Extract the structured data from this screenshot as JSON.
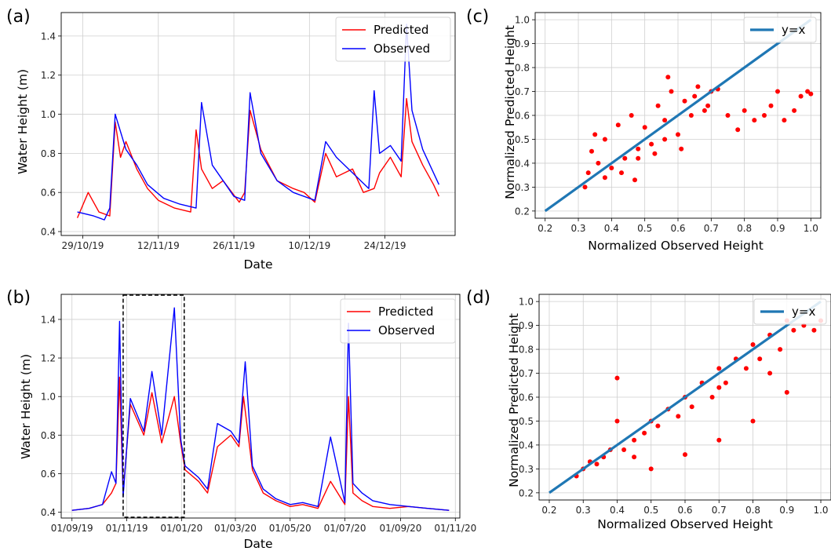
{
  "chart_data": [
    {
      "panel": "(a)",
      "type": "line",
      "xlabel": "Date",
      "ylabel": "Water Height (m)",
      "xticks": [
        "29/10/19",
        "12/11/19",
        "26/11/19",
        "10/12/19",
        "24/12/19"
      ],
      "yticks": [
        "0.4",
        "0.6",
        "0.8",
        "1.0",
        "1.2",
        "1.4"
      ],
      "ylim": [
        0.38,
        1.52
      ],
      "xlim": [
        "2019-10-25",
        "2020-01-06"
      ],
      "grid": true,
      "legend_position": "top-right",
      "series": [
        {
          "name": "Predicted",
          "color": "#ff0000",
          "x": [
            "2019-10-28",
            "2019-10-30",
            "2019-11-01",
            "2019-11-03",
            "2019-11-04",
            "2019-11-05",
            "2019-11-06",
            "2019-11-08",
            "2019-11-10",
            "2019-11-12",
            "2019-11-15",
            "2019-11-18",
            "2019-11-19",
            "2019-11-20",
            "2019-11-22",
            "2019-11-24",
            "2019-11-27",
            "2019-11-28",
            "2019-11-29",
            "2019-12-01",
            "2019-12-04",
            "2019-12-07",
            "2019-12-09",
            "2019-12-11",
            "2019-12-13",
            "2019-12-15",
            "2019-12-18",
            "2019-12-20",
            "2019-12-22",
            "2019-12-23",
            "2019-12-25",
            "2019-12-27",
            "2019-12-28",
            "2019-12-29",
            "2019-12-31",
            "2020-01-02",
            "2020-01-03"
          ],
          "y": [
            0.47,
            0.6,
            0.5,
            0.48,
            0.96,
            0.78,
            0.86,
            0.72,
            0.62,
            0.56,
            0.52,
            0.5,
            0.92,
            0.72,
            0.62,
            0.66,
            0.55,
            0.6,
            1.02,
            0.82,
            0.66,
            0.62,
            0.6,
            0.55,
            0.8,
            0.68,
            0.72,
            0.6,
            0.62,
            0.7,
            0.78,
            0.68,
            1.08,
            0.86,
            0.74,
            0.64,
            0.58
          ]
        },
        {
          "name": "Observed",
          "color": "#0000ff",
          "x": [
            "2019-10-28",
            "2019-10-31",
            "2019-11-02",
            "2019-11-03",
            "2019-11-04",
            "2019-11-06",
            "2019-11-08",
            "2019-11-10",
            "2019-11-13",
            "2019-11-16",
            "2019-11-19",
            "2019-11-20",
            "2019-11-22",
            "2019-11-24",
            "2019-11-26",
            "2019-11-28",
            "2019-11-29",
            "2019-12-01",
            "2019-12-04",
            "2019-12-07",
            "2019-12-09",
            "2019-12-11",
            "2019-12-13",
            "2019-12-15",
            "2019-12-18",
            "2019-12-21",
            "2019-12-22",
            "2019-12-23",
            "2019-12-25",
            "2019-12-27",
            "2019-12-28",
            "2019-12-29",
            "2019-12-31",
            "2020-01-02",
            "2020-01-03"
          ],
          "y": [
            0.5,
            0.48,
            0.46,
            0.52,
            1.0,
            0.82,
            0.74,
            0.64,
            0.57,
            0.54,
            0.52,
            1.06,
            0.74,
            0.66,
            0.58,
            0.56,
            1.11,
            0.8,
            0.66,
            0.6,
            0.58,
            0.56,
            0.86,
            0.78,
            0.7,
            0.62,
            1.12,
            0.8,
            0.84,
            0.76,
            1.46,
            1.02,
            0.82,
            0.7,
            0.64
          ]
        }
      ]
    },
    {
      "panel": "(b)",
      "type": "line",
      "xlabel": "Date",
      "ylabel": "Water Height (m)",
      "xticks": [
        "01/09/19",
        "01/11/19",
        "01/01/20",
        "01/03/20",
        "01/05/20",
        "01/07/20",
        "01/09/20",
        "01/11/20"
      ],
      "yticks": [
        "0.4",
        "0.6",
        "0.8",
        "1.0",
        "1.2",
        "1.4"
      ],
      "ylim": [
        0.37,
        1.53
      ],
      "xlim": [
        "2019-08-20",
        "2020-11-06"
      ],
      "grid": true,
      "legend_position": "top-right",
      "highlight_box": [
        "2019-10-28",
        "2020-01-04"
      ],
      "series": [
        {
          "name": "Predicted",
          "color": "#ff0000",
          "x": [
            "2019-09-01",
            "2019-09-20",
            "2019-10-05",
            "2019-10-15",
            "2019-10-20",
            "2019-10-24",
            "2019-10-28",
            "2019-11-05",
            "2019-11-20",
            "2019-11-29",
            "2019-12-10",
            "2019-12-24",
            "2019-12-31",
            "2020-01-05",
            "2020-01-20",
            "2020-01-30",
            "2020-02-10",
            "2020-02-25",
            "2020-03-05",
            "2020-03-10",
            "2020-03-20",
            "2020-04-01",
            "2020-04-15",
            "2020-05-01",
            "2020-05-15",
            "2020-06-01",
            "2020-06-15",
            "2020-07-01",
            "2020-07-05",
            "2020-07-10",
            "2020-07-20",
            "2020-08-01",
            "2020-08-20",
            "2020-09-10",
            "2020-10-01",
            "2020-10-25"
          ],
          "y": [
            0.41,
            0.42,
            0.44,
            0.5,
            0.55,
            1.1,
            0.5,
            0.96,
            0.8,
            1.02,
            0.76,
            1.0,
            0.76,
            0.62,
            0.56,
            0.5,
            0.74,
            0.8,
            0.74,
            1.0,
            0.62,
            0.5,
            0.46,
            0.43,
            0.44,
            0.42,
            0.56,
            0.44,
            1.0,
            0.5,
            0.46,
            0.43,
            0.42,
            0.43,
            0.42,
            0.41
          ]
        },
        {
          "name": "Observed",
          "color": "#0000ff",
          "x": [
            "2019-09-01",
            "2019-09-20",
            "2019-10-05",
            "2019-10-15",
            "2019-10-20",
            "2019-10-24",
            "2019-10-28",
            "2019-11-05",
            "2019-11-20",
            "2019-11-29",
            "2019-12-10",
            "2019-12-24",
            "2019-12-31",
            "2020-01-05",
            "2020-01-20",
            "2020-01-30",
            "2020-02-10",
            "2020-02-25",
            "2020-03-05",
            "2020-03-12",
            "2020-03-20",
            "2020-04-01",
            "2020-04-15",
            "2020-05-01",
            "2020-05-15",
            "2020-06-01",
            "2020-06-15",
            "2020-07-01",
            "2020-07-05",
            "2020-07-10",
            "2020-07-20",
            "2020-08-01",
            "2020-08-20",
            "2020-09-10",
            "2020-10-01",
            "2020-10-25"
          ],
          "y": [
            0.41,
            0.42,
            0.44,
            0.61,
            0.55,
            1.39,
            0.48,
            0.99,
            0.82,
            1.13,
            0.8,
            1.46,
            0.78,
            0.64,
            0.58,
            0.52,
            0.86,
            0.82,
            0.76,
            1.18,
            0.64,
            0.52,
            0.47,
            0.44,
            0.45,
            0.43,
            0.79,
            0.45,
            1.38,
            0.55,
            0.5,
            0.46,
            0.44,
            0.43,
            0.42,
            0.41
          ]
        }
      ]
    },
    {
      "panel": "(c)",
      "type": "scatter",
      "xlabel": "Normalized Observed Height",
      "ylabel": "Normalized Predicted Height",
      "xticks": [
        "0.2",
        "0.3",
        "0.4",
        "0.5",
        "0.6",
        "0.7",
        "0.8",
        "0.9",
        "1.0"
      ],
      "yticks": [
        "0.2",
        "0.3",
        "0.4",
        "0.5",
        "0.6",
        "0.7",
        "0.8",
        "0.9",
        "1.0"
      ],
      "xlim": [
        0.17,
        1.03
      ],
      "ylim": [
        0.17,
        1.03
      ],
      "grid": true,
      "legend_position": "top-right",
      "series": [
        {
          "name": "y=x",
          "type": "line",
          "color": "#1f77b4",
          "x": [
            0.2,
            1.0
          ],
          "y": [
            0.2,
            1.0
          ]
        },
        {
          "type": "scatter",
          "color": "#ff0000",
          "x": [
            0.32,
            0.33,
            0.34,
            0.35,
            0.36,
            0.38,
            0.4,
            0.42,
            0.44,
            0.46,
            0.48,
            0.5,
            0.52,
            0.54,
            0.56,
            0.58,
            0.6,
            0.62,
            0.64,
            0.66,
            0.68,
            0.7,
            0.72,
            0.75,
            0.78,
            0.8,
            0.83,
            0.86,
            0.88,
            0.9,
            0.92,
            0.95,
            0.97,
            0.99,
            1.0,
            0.38,
            0.43,
            0.48,
            0.53,
            0.57,
            0.61,
            0.65,
            0.69,
            0.56,
            0.47
          ],
          "y": [
            0.3,
            0.36,
            0.45,
            0.52,
            0.4,
            0.5,
            0.38,
            0.56,
            0.42,
            0.6,
            0.46,
            0.55,
            0.48,
            0.64,
            0.58,
            0.7,
            0.52,
            0.66,
            0.6,
            0.72,
            0.62,
            0.7,
            0.71,
            0.6,
            0.54,
            0.62,
            0.58,
            0.6,
            0.64,
            0.7,
            0.58,
            0.62,
            0.68,
            0.7,
            0.69,
            0.34,
            0.36,
            0.42,
            0.44,
            0.76,
            0.46,
            0.68,
            0.64,
            0.5,
            0.33
          ]
        }
      ]
    },
    {
      "panel": "(d)",
      "type": "scatter",
      "xlabel": "Normalized Observed Height",
      "ylabel": "Normalized Predicted Height",
      "xticks": [
        "0.2",
        "0.3",
        "0.4",
        "0.5",
        "0.6",
        "0.7",
        "0.8",
        "0.9",
        "1.0"
      ],
      "yticks": [
        "0.2",
        "0.3",
        "0.4",
        "0.5",
        "0.6",
        "0.7",
        "0.8",
        "0.9",
        "1.0"
      ],
      "xlim": [
        0.17,
        1.03
      ],
      "ylim": [
        0.17,
        1.03
      ],
      "grid": true,
      "legend_position": "top-right",
      "series": [
        {
          "name": "y=x",
          "type": "line",
          "color": "#1f77b4",
          "x": [
            0.2,
            1.0
          ],
          "y": [
            0.2,
            1.0
          ]
        },
        {
          "type": "scatter",
          "color": "#ff0000",
          "x": [
            0.28,
            0.3,
            0.32,
            0.34,
            0.36,
            0.38,
            0.4,
            0.4,
            0.42,
            0.45,
            0.48,
            0.5,
            0.52,
            0.55,
            0.58,
            0.6,
            0.62,
            0.65,
            0.68,
            0.7,
            0.72,
            0.75,
            0.78,
            0.8,
            0.82,
            0.85,
            0.88,
            0.9,
            0.92,
            0.95,
            0.98,
            1.0,
            0.6,
            0.7,
            0.8,
            0.9,
            0.5,
            0.45,
            0.7,
            0.85
          ],
          "y": [
            0.27,
            0.3,
            0.33,
            0.32,
            0.35,
            0.38,
            0.68,
            0.5,
            0.38,
            0.42,
            0.45,
            0.5,
            0.48,
            0.55,
            0.52,
            0.6,
            0.56,
            0.66,
            0.6,
            0.72,
            0.66,
            0.76,
            0.72,
            0.82,
            0.76,
            0.86,
            0.8,
            0.92,
            0.88,
            0.9,
            0.88,
            0.92,
            0.36,
            0.42,
            0.5,
            0.62,
            0.3,
            0.35,
            0.64,
            0.7
          ]
        }
      ]
    }
  ]
}
